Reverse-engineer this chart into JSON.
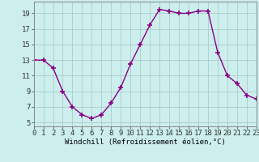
{
  "x": [
    0,
    1,
    2,
    3,
    4,
    5,
    6,
    7,
    8,
    9,
    10,
    11,
    12,
    13,
    14,
    15,
    16,
    17,
    18,
    19,
    20,
    21,
    22,
    23
  ],
  "y": [
    13,
    13,
    12,
    9,
    7,
    6,
    5.5,
    6,
    7.5,
    9.5,
    12.5,
    15,
    17.5,
    19.5,
    19.3,
    19.0,
    19.0,
    19.3,
    19.3,
    14,
    11,
    10,
    8.5,
    8
  ],
  "line_color": "#880088",
  "marker": "+",
  "marker_size": 4,
  "bg_color": "#cceeed",
  "grid_color": "#aacccc",
  "xlabel": "Windchill (Refroidissement éolien,°C)",
  "xlim": [
    0,
    23
  ],
  "ylim": [
    4.5,
    20.5
  ],
  "yticks": [
    5,
    7,
    9,
    11,
    13,
    15,
    17,
    19
  ],
  "xticks": [
    0,
    1,
    2,
    3,
    4,
    5,
    6,
    7,
    8,
    9,
    10,
    11,
    12,
    13,
    14,
    15,
    16,
    17,
    18,
    19,
    20,
    21,
    22,
    23
  ],
  "xlabel_fontsize": 6.5,
  "tick_fontsize": 6.5,
  "line_width": 1.0,
  "marker_edge_width": 1.2
}
